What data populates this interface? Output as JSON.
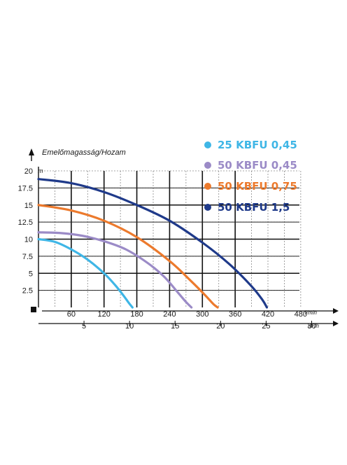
{
  "chart_data": {
    "type": "line",
    "ylabel": "Emelőmagasság/Hozam",
    "y_unit": "m",
    "x_unit_primary": "l/min",
    "x_unit_secondary": "m³/h",
    "ylim": [
      0,
      20
    ],
    "xlim": [
      0,
      480
    ],
    "y_ticks": [
      "20",
      "17.5",
      "15",
      "12.5",
      "10",
      "7.5",
      "5",
      "2.5"
    ],
    "y_tick_values": [
      20,
      17.5,
      15,
      12.5,
      10,
      7.5,
      5,
      2.5
    ],
    "x_ticks": [
      "60",
      "120",
      "180",
      "240",
      "300",
      "360",
      "420",
      "480"
    ],
    "x_tick_values": [
      60,
      120,
      180,
      240,
      300,
      360,
      420,
      480
    ],
    "x2_ticks": [
      "5",
      "10",
      "15",
      "20",
      "25",
      "30"
    ],
    "x2_tick_values": [
      5,
      10,
      15,
      20,
      25,
      30
    ],
    "x2lim": [
      0,
      30
    ],
    "grid": true,
    "legend_position": "top-right",
    "series": [
      {
        "name": "25 KBFU 0,45",
        "color": "#3fb6e6",
        "x": [
          0,
          30,
          60,
          90,
          120,
          140,
          155,
          165,
          172
        ],
        "y": [
          10,
          9.6,
          8.5,
          7,
          5,
          3.3,
          1.8,
          0.7,
          0
        ]
      },
      {
        "name": "50 KBFU 0,45",
        "color": "#9b8bc7",
        "x": [
          0,
          40,
          80,
          120,
          160,
          200,
          230,
          255,
          270,
          280
        ],
        "y": [
          11,
          10.9,
          10.5,
          9.7,
          8.5,
          6.5,
          4.5,
          2.2,
          0.8,
          0
        ]
      },
      {
        "name": "50 KBFU 0,75",
        "color": "#ec7a2d",
        "x": [
          0,
          60,
          120,
          180,
          240,
          280,
          305,
          320,
          328
        ],
        "y": [
          15,
          14.2,
          12.7,
          10.3,
          6.8,
          3.8,
          1.8,
          0.5,
          0
        ]
      },
      {
        "name": "50 KBFU 1,5",
        "color": "#1f3a8a",
        "x": [
          0,
          60,
          120,
          180,
          240,
          300,
          350,
          390,
          410,
          418
        ],
        "y": [
          18.8,
          18.2,
          16.9,
          15,
          12.7,
          9.5,
          6.3,
          3.1,
          1.1,
          0
        ]
      }
    ]
  }
}
